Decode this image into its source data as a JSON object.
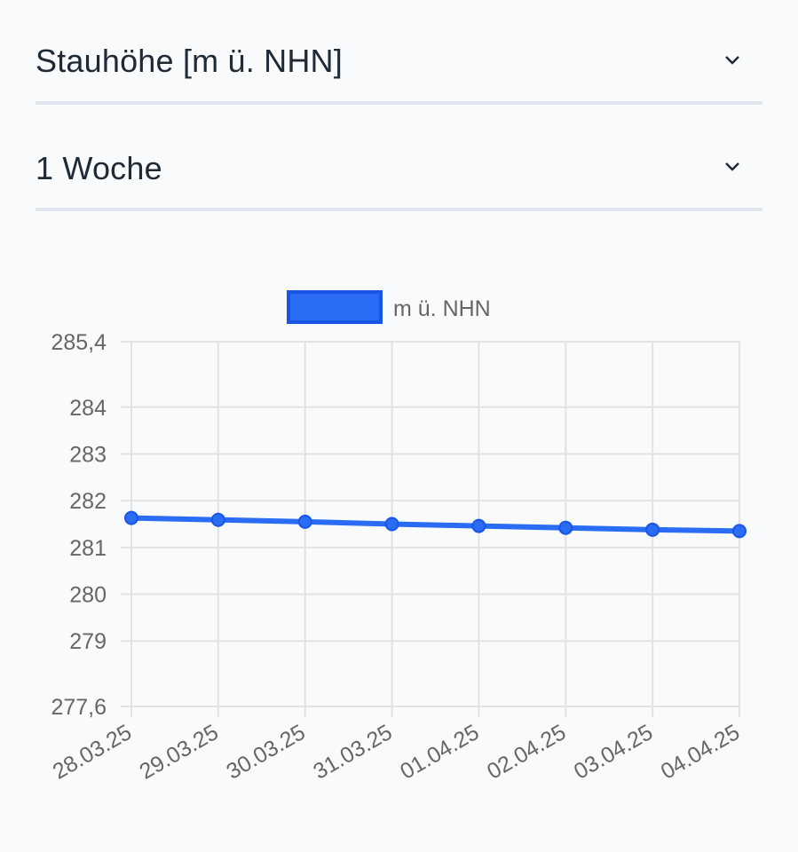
{
  "filters": {
    "parameter": {
      "value": "Stauhöhe [m ü. NHN]",
      "icon": "chevron-down-icon"
    },
    "range": {
      "value": "1 Woche",
      "icon": "chevron-down-icon"
    }
  },
  "colors": {
    "accent": "#2a6df4",
    "accent_border": "#1a56e6",
    "grid": "#e2e2e2",
    "text": "#1f2a37",
    "tick": "#666666"
  },
  "chart_data": {
    "type": "line",
    "x": [
      "28.03.25",
      "29.03.25",
      "30.03.25",
      "31.03.25",
      "01.04.25",
      "02.04.25",
      "03.04.25",
      "04.04.25"
    ],
    "series": [
      {
        "name": "m ü. NHN",
        "values": [
          281.63,
          281.59,
          281.55,
          281.5,
          281.46,
          281.42,
          281.38,
          281.35
        ]
      }
    ],
    "ylim": [
      277.6,
      285.4
    ],
    "yticks": [
      "285,4",
      "284",
      "283",
      "282",
      "281",
      "280",
      "279",
      "277,6"
    ],
    "ytick_values": [
      285.4,
      284,
      283,
      282,
      281,
      280,
      279,
      277.6
    ],
    "legend": "top-center",
    "grid": true
  }
}
